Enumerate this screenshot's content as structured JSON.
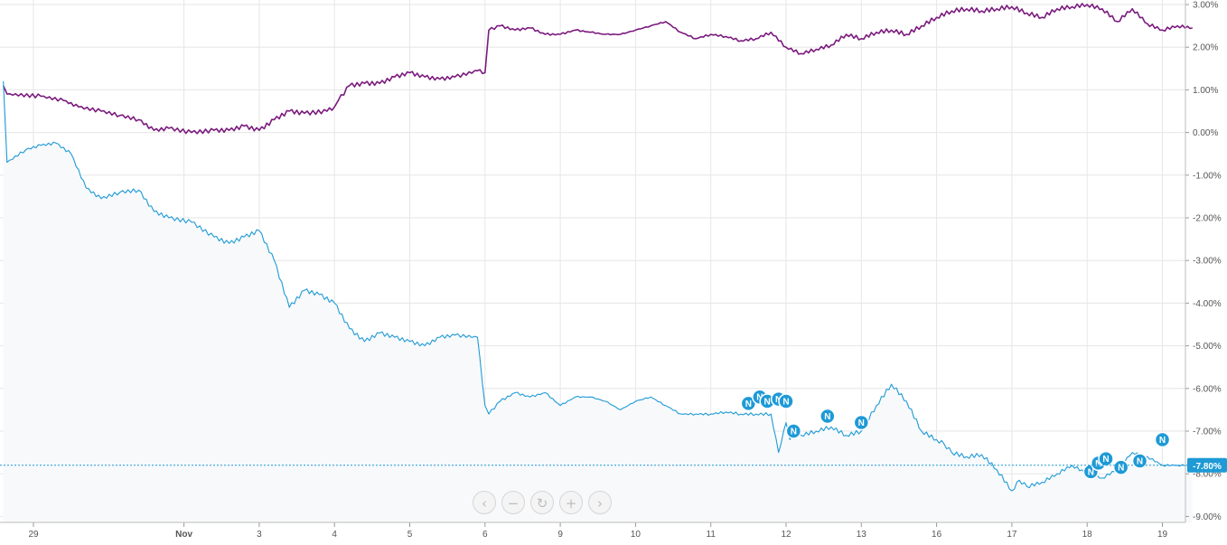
{
  "chart_data": {
    "type": "line",
    "title": "",
    "xlabel": "",
    "ylabel": "",
    "ylim": [
      -9.3,
      3.1
    ],
    "y_ticks": [
      "3.00%",
      "2.00%",
      "1.00%",
      "0.00%",
      "-1.00%",
      "-2.00%",
      "-3.00%",
      "-4.00%",
      "-5.00%",
      "-6.00%",
      "-7.00%",
      "-8.00%",
      "-9.00%"
    ],
    "y_tick_values": [
      3,
      2,
      1,
      0,
      -1,
      -2,
      -3,
      -4,
      -5,
      -6,
      -7,
      -8,
      -9
    ],
    "x_ticks": [
      "29",
      "Nov",
      "3",
      "4",
      "5",
      "6",
      "9",
      "10",
      "11",
      "12",
      "13",
      "16",
      "17",
      "18",
      "19"
    ],
    "x_tick_index": [
      0.4,
      2.4,
      3.4,
      4.4,
      5.4,
      6.4,
      7.4,
      8.4,
      9.4,
      10.4,
      11.4,
      12.4,
      13.4,
      14.4,
      15.4
    ],
    "x_range": [
      0,
      15.8
    ],
    "grid": true,
    "current_label": "-7.80%",
    "series": [
      {
        "color": "#7b1a7e",
        "x": [
          0,
          0.05,
          0.5,
          0.8,
          1.0,
          1.3,
          1.55,
          1.8,
          2.0,
          2.2,
          2.5,
          2.8,
          3.0,
          3.2,
          3.4,
          3.6,
          3.8,
          4.0,
          4.3,
          4.4,
          4.45,
          4.6,
          4.8,
          5.0,
          5.2,
          5.4,
          5.6,
          5.8,
          6.0,
          6.3,
          6.4,
          6.45,
          6.6,
          6.8,
          7.0,
          7.2,
          7.4,
          7.6,
          7.8,
          8.0,
          8.2,
          8.4,
          8.6,
          8.8,
          9.0,
          9.2,
          9.4,
          9.6,
          9.8,
          10.0,
          10.2,
          10.4,
          10.6,
          10.8,
          11.0,
          11.2,
          11.4,
          11.6,
          11.8,
          12.0,
          12.2,
          12.4,
          12.6,
          12.8,
          13.0,
          13.2,
          13.4,
          13.6,
          13.8,
          14.0,
          14.2,
          14.4,
          14.6,
          14.8,
          15.0,
          15.2,
          15.4,
          15.6,
          15.8
        ],
        "values": [
          1.1,
          0.9,
          0.85,
          0.75,
          0.6,
          0.5,
          0.4,
          0.3,
          0.05,
          0.1,
          0.0,
          0.05,
          0.05,
          0.15,
          0.05,
          0.3,
          0.5,
          0.45,
          0.5,
          0.6,
          0.75,
          1.1,
          1.15,
          1.15,
          1.3,
          1.4,
          1.3,
          1.25,
          1.3,
          1.45,
          1.4,
          2.4,
          2.5,
          2.4,
          2.45,
          2.3,
          2.3,
          2.4,
          2.35,
          2.3,
          2.3,
          2.4,
          2.5,
          2.6,
          2.35,
          2.2,
          2.3,
          2.25,
          2.15,
          2.2,
          2.35,
          2.0,
          1.85,
          1.95,
          2.05,
          2.3,
          2.2,
          2.35,
          2.4,
          2.3,
          2.5,
          2.7,
          2.85,
          2.9,
          2.85,
          2.9,
          2.95,
          2.8,
          2.7,
          2.9,
          2.95,
          3.0,
          2.9,
          2.6,
          2.9,
          2.55,
          2.4,
          2.5,
          2.45
        ]
      },
      {
        "color": "#1e9ad6",
        "x": [
          0,
          0.05,
          0.3,
          0.5,
          0.7,
          0.9,
          1.1,
          1.3,
          1.55,
          1.8,
          2.0,
          2.2,
          2.5,
          2.8,
          3.0,
          3.2,
          3.4,
          3.6,
          3.8,
          4.0,
          4.2,
          4.4,
          4.6,
          4.8,
          5.0,
          5.2,
          5.4,
          5.6,
          5.8,
          6.0,
          6.3,
          6.4,
          6.45,
          6.6,
          6.8,
          7.0,
          7.2,
          7.4,
          7.6,
          7.8,
          8.0,
          8.2,
          8.4,
          8.6,
          8.8,
          9.0,
          9.2,
          9.4,
          9.6,
          9.8,
          10.0,
          10.2,
          10.3,
          10.4,
          10.45,
          10.5,
          10.6,
          10.8,
          11.0,
          11.2,
          11.4,
          11.6,
          11.8,
          12.0,
          12.2,
          12.4,
          12.5,
          12.6,
          12.8,
          13.0,
          13.2,
          13.4,
          13.5,
          13.6,
          13.8,
          14.0,
          14.2,
          14.4,
          14.6,
          14.8,
          15.0,
          15.2,
          15.4,
          15.6,
          15.8
        ],
        "values": [
          1.2,
          -0.7,
          -0.4,
          -0.3,
          -0.25,
          -0.5,
          -1.3,
          -1.55,
          -1.4,
          -1.35,
          -1.85,
          -2.0,
          -2.1,
          -2.45,
          -2.6,
          -2.45,
          -2.3,
          -3.0,
          -4.1,
          -3.7,
          -3.8,
          -4.0,
          -4.6,
          -4.9,
          -4.7,
          -4.8,
          -4.9,
          -5.0,
          -4.8,
          -4.75,
          -4.8,
          -6.4,
          -6.6,
          -6.3,
          -6.1,
          -6.2,
          -6.1,
          -6.4,
          -6.2,
          -6.2,
          -6.3,
          -6.5,
          -6.3,
          -6.2,
          -6.4,
          -6.6,
          -6.6,
          -6.6,
          -6.55,
          -6.6,
          -6.6,
          -6.6,
          -7.5,
          -6.8,
          -7.2,
          -7.0,
          -7.1,
          -7.0,
          -6.9,
          -7.1,
          -7.0,
          -6.4,
          -5.9,
          -6.3,
          -7.0,
          -7.2,
          -7.3,
          -7.5,
          -7.6,
          -7.55,
          -7.9,
          -8.4,
          -8.15,
          -8.3,
          -8.2,
          -8.0,
          -7.8,
          -8.0,
          -8.1,
          -7.9,
          -7.5,
          -7.6,
          -7.8,
          -7.8,
          -7.8
        ]
      }
    ],
    "news_markers": {
      "label": "N",
      "points": [
        [
          9.9,
          -6.35
        ],
        [
          10.05,
          -6.2
        ],
        [
          10.15,
          -6.3
        ],
        [
          10.3,
          -6.25
        ],
        [
          10.4,
          -6.3
        ],
        [
          10.5,
          -7.0
        ],
        [
          10.95,
          -6.65
        ],
        [
          11.4,
          -6.8
        ],
        [
          14.45,
          -7.95
        ],
        [
          14.55,
          -7.75
        ],
        [
          14.65,
          -7.65
        ],
        [
          14.85,
          -7.85
        ],
        [
          15.1,
          -7.7
        ],
        [
          15.4,
          -7.2
        ]
      ]
    }
  },
  "controls": {
    "prev": "‹",
    "zoom_out": "−",
    "reset": "↻",
    "zoom_in": "+",
    "next": "›"
  }
}
